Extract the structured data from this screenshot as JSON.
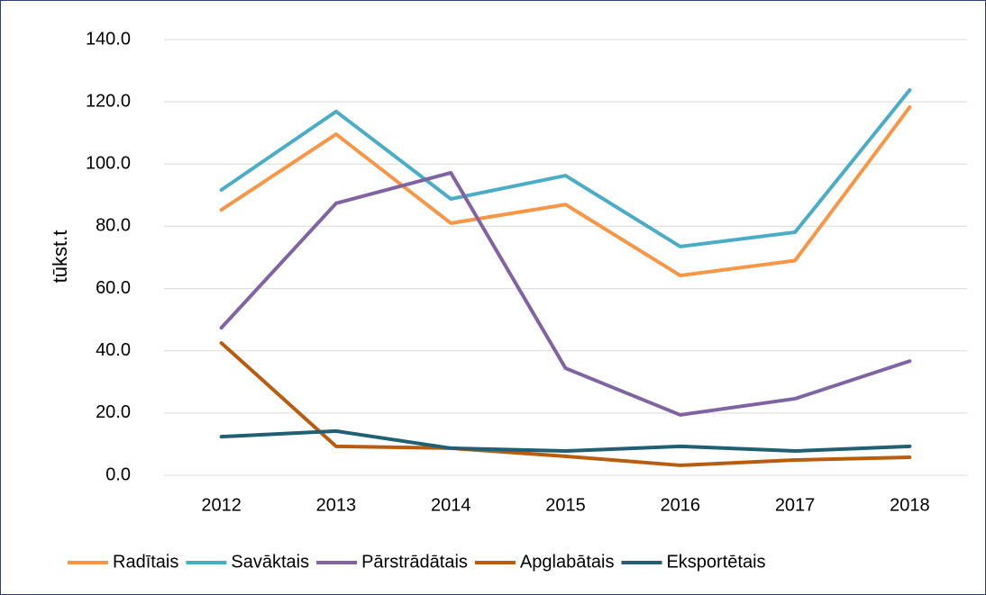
{
  "chart_data": {
    "type": "line",
    "ylabel": "tūkst.t",
    "categories": [
      "2012",
      "2013",
      "2014",
      "2015",
      "2016",
      "2017",
      "2018"
    ],
    "series": [
      {
        "name": "Radītais",
        "color": "#f79646",
        "values": [
          85.3,
          109.6,
          81.0,
          87.0,
          64.2,
          69.0,
          118.3
        ]
      },
      {
        "name": "Savāktais",
        "color": "#4bacc6",
        "values": [
          91.7,
          116.9,
          88.8,
          96.3,
          73.5,
          78.1,
          123.8
        ]
      },
      {
        "name": "Pārstrādātais",
        "color": "#8064a2",
        "values": [
          47.4,
          87.4,
          97.2,
          34.4,
          19.4,
          24.6,
          36.7
        ]
      },
      {
        "name": "Apglabātais",
        "color": "#b85c10",
        "values": [
          42.5,
          9.3,
          8.7,
          6.1,
          3.2,
          4.9,
          5.8
        ]
      },
      {
        "name": "Eksportētais",
        "color": "#215f73",
        "values": [
          12.4,
          14.2,
          8.7,
          7.8,
          9.3,
          7.8,
          9.3
        ]
      }
    ],
    "ylim": [
      0,
      140
    ],
    "yticks": [
      {
        "value": 0,
        "label": "0.0"
      },
      {
        "value": 20,
        "label": "20.0"
      },
      {
        "value": 40,
        "label": "40.0"
      },
      {
        "value": 60,
        "label": "60.0"
      },
      {
        "value": 80,
        "label": "80.0"
      },
      {
        "value": 100,
        "label": "100.0"
      },
      {
        "value": 120,
        "label": "120.0"
      },
      {
        "value": 140,
        "label": "140.0"
      }
    ],
    "grid": true,
    "legend": "bottom"
  }
}
